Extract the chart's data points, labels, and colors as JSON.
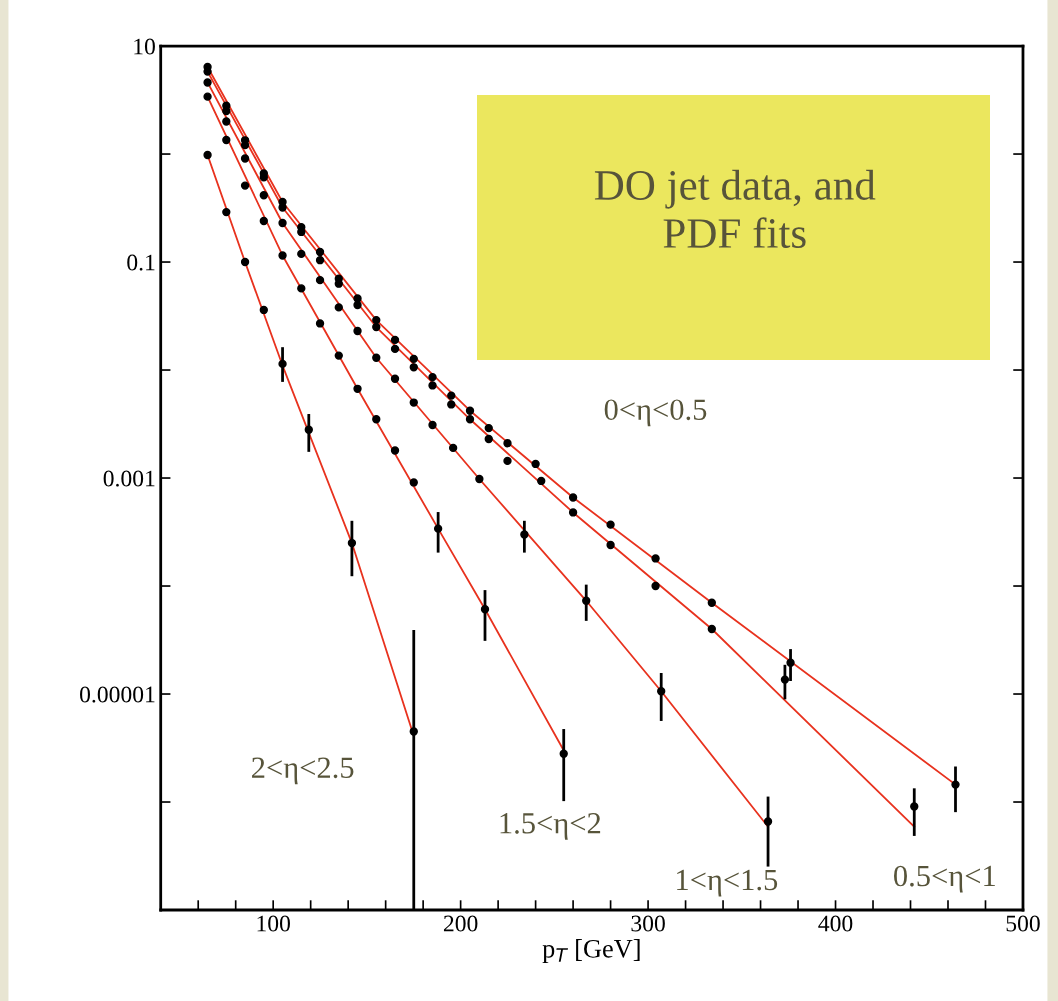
{
  "chart_data": {
    "type": "scatter",
    "xlabel": "p$_{T}$ [GeV]",
    "log": "y",
    "xlim": [
      40,
      500
    ],
    "ylim": [
      1e-07,
      10
    ],
    "xticks": [
      {
        "value": 60,
        "label": null
      },
      {
        "value": 80,
        "label": null
      },
      100,
      {
        "value": 120,
        "label": null
      },
      {
        "value": 140,
        "label": null
      },
      {
        "value": 160,
        "label": null
      },
      {
        "value": 180,
        "label": null
      },
      200,
      {
        "value": 220,
        "label": null
      },
      {
        "value": 240,
        "label": null
      },
      {
        "value": 260,
        "label": null
      },
      {
        "value": 280,
        "label": null
      },
      300,
      {
        "value": 320,
        "label": null
      },
      {
        "value": 340,
        "label": null
      },
      {
        "value": 360,
        "label": null
      },
      {
        "value": 380,
        "label": null
      },
      400,
      {
        "value": 420,
        "label": null
      },
      {
        "value": 440,
        "label": null
      },
      {
        "value": 460,
        "label": null
      },
      {
        "value": 480,
        "label": null
      },
      500
    ],
    "yticks": [
      {
        "value": 1e-07,
        "label": null
      },
      {
        "value": 1e-06,
        "label": null
      },
      {
        "value": 1e-05,
        "label": "0.00001"
      },
      {
        "value": 0.0001,
        "label": null
      },
      {
        "value": 0.001,
        "label": "0.001"
      },
      {
        "value": 0.01,
        "label": null
      },
      {
        "value": 0.1,
        "label": "0.1"
      },
      {
        "value": 1,
        "label": null
      },
      {
        "value": 10,
        "label": "10"
      }
    ],
    "annotations": [
      "DO jet data, and\nPDF fits"
    ],
    "series": [
      {
        "type": "line",
        "color": "#e8321e",
        "marker": "none",
        "x": [
          65,
          105,
          155,
          205,
          260,
          334,
          464
        ],
        "values": [
          6.4,
          0.36,
          0.029,
          0.0042,
          0.00066,
          7e-05,
          1.45e-06
        ]
      },
      {
        "type": "line",
        "color": "#e8321e",
        "marker": "none",
        "x": [
          65,
          105,
          155,
          205,
          260,
          334,
          442
        ],
        "values": [
          5.8,
          0.32,
          0.025,
          0.0035,
          0.00048,
          4e-05,
          5.9e-07
        ]
      },
      {
        "type": "line",
        "color": "#e8321e",
        "marker": "none",
        "x": [
          65,
          105,
          155,
          210,
          267,
          307,
          364
        ],
        "values": [
          4.6,
          0.23,
          0.013,
          0.00098,
          7.3e-05,
          1.06e-05,
          5.9e-07
        ]
      },
      {
        "type": "line",
        "color": "#e8321e",
        "marker": "none",
        "x": [
          65,
          105,
          145,
          188,
          213,
          255
        ],
        "values": [
          3.4,
          0.115,
          0.0067,
          0.00034,
          6.1e-05,
          3e-06
        ]
      },
      {
        "type": "line",
        "color": "#e8321e",
        "marker": "none",
        "x": [
          65,
          85,
          105,
          142,
          175
        ],
        "values": [
          0.98,
          0.1,
          0.011,
          0.00025,
          4.1e-06
        ]
      },
      {
        "name": "0<η<0.5",
        "color": "#000000",
        "marker": "circle",
        "x": [
          65,
          75,
          85,
          95,
          105,
          115,
          125,
          135,
          145,
          155,
          165,
          175,
          185,
          195,
          205,
          215,
          225,
          240,
          260,
          280,
          304,
          334,
          376,
          464
        ],
        "values": [
          6.4,
          2.8,
          1.34,
          0.66,
          0.36,
          0.21,
          0.124,
          0.07,
          0.046,
          0.029,
          0.019,
          0.0127,
          0.0086,
          0.0058,
          0.0042,
          0.0029,
          0.0021,
          0.00135,
          0.00066,
          0.00037,
          0.00018,
          7e-05,
          1.95e-05,
          1.45e-06
        ],
        "errors": [
          null,
          null,
          null,
          null,
          null,
          null,
          null,
          null,
          null,
          null,
          null,
          null,
          null,
          null,
          null,
          null,
          null,
          null,
          null,
          null,
          null,
          null,
          [
            1.36e-05,
            2.53e-05
          ],
          [
            8.3e-07,
            2.07e-06
          ]
        ]
      },
      {
        "name": "0.5<η<1",
        "color": "#000000",
        "marker": "circle",
        "x": [
          65,
          75,
          85,
          95,
          105,
          115,
          125,
          135,
          145,
          155,
          165,
          175,
          185,
          195,
          205,
          215,
          225,
          243,
          260,
          280,
          304,
          334,
          373,
          442
        ],
        "values": [
          5.8,
          2.5,
          1.21,
          0.61,
          0.32,
          0.19,
          0.104,
          0.063,
          0.04,
          0.025,
          0.0157,
          0.0106,
          0.0072,
          0.0048,
          0.0035,
          0.0023,
          0.00144,
          0.00094,
          0.00048,
          0.00024,
          0.0001,
          4e-05,
          1.36e-05,
          9.1e-07
        ],
        "errors": [
          null,
          null,
          null,
          null,
          null,
          null,
          null,
          null,
          null,
          null,
          null,
          null,
          null,
          null,
          null,
          null,
          null,
          null,
          null,
          null,
          null,
          null,
          [
            9.2e-06,
            1.81e-05
          ],
          [
            5e-07,
            1.3e-06
          ]
        ]
      },
      {
        "name": "1<η<1.5",
        "color": "#000000",
        "marker": "circle",
        "x": [
          65,
          75,
          85,
          95,
          105,
          115,
          125,
          135,
          145,
          155,
          165,
          175,
          185,
          196,
          210,
          234,
          267,
          307,
          364
        ],
        "values": [
          4.6,
          2.0,
          0.91,
          0.415,
          0.23,
          0.119,
          0.068,
          0.038,
          0.023,
          0.013,
          0.0083,
          0.005,
          0.0031,
          0.0019,
          0.00098,
          0.0003,
          7.3e-05,
          1.06e-05,
          6.6e-07
        ],
        "errors": [
          null,
          null,
          null,
          null,
          null,
          null,
          null,
          null,
          null,
          null,
          null,
          null,
          null,
          null,
          null,
          [
            0.00021,
            0.00039
          ],
          [
            4.9e-05,
            0.0001
          ],
          [
            5.8e-06,
            1.52e-05
          ],
          [
            2.6e-07,
            1.09e-06
          ]
        ]
      },
      {
        "name": "1.5<η<2",
        "color": "#000000",
        "marker": "circle",
        "x": [
          65,
          75,
          85,
          95,
          105,
          115,
          125,
          135,
          145,
          155,
          165,
          175,
          188,
          213,
          255
        ],
        "values": [
          3.4,
          1.35,
          0.51,
          0.24,
          0.115,
          0.057,
          0.027,
          0.0136,
          0.0067,
          0.0035,
          0.0018,
          0.00091,
          0.00034,
          6.1e-05,
          2.8e-06
        ],
        "errors": [
          null,
          null,
          null,
          null,
          null,
          null,
          null,
          null,
          null,
          null,
          null,
          null,
          [
            0.00021,
            0.00047
          ],
          [
            3.2e-05,
            8.9e-05
          ],
          [
            1.05e-06,
            4.6e-06
          ]
        ]
      },
      {
        "name": "2<η<2.5",
        "color": "#000000",
        "marker": "circle",
        "x": [
          65,
          75,
          85,
          95,
          105,
          119,
          142,
          175
        ],
        "values": [
          0.98,
          0.29,
          0.1,
          0.036,
          0.0114,
          0.0028,
          0.00025,
          4.5e-06
        ],
        "errors": [
          null,
          null,
          null,
          null,
          [
            0.008,
            0.0158
          ],
          [
            0.0018,
            0.0038
          ],
          [
            0.000127,
            0.00039
          ],
          [
            1e-07,
            3.8e-05
          ]
        ]
      }
    ]
  }
}
